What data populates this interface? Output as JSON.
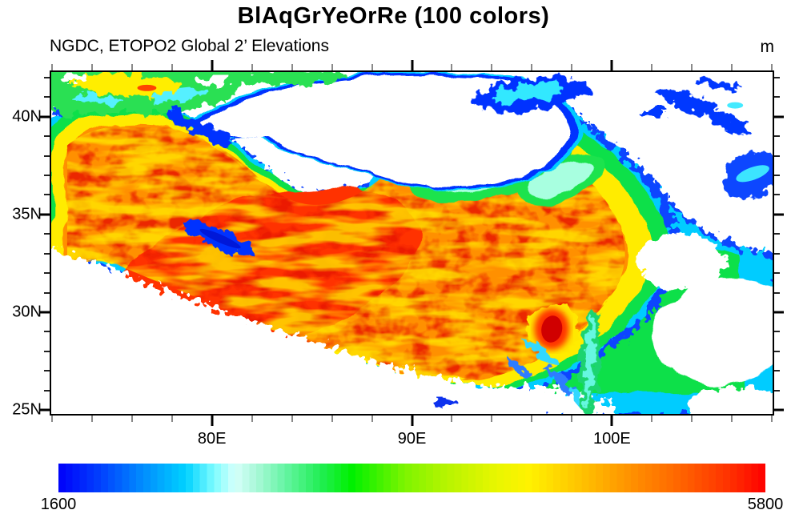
{
  "chart_data": {
    "type": "heatmap",
    "title": "BlAqGrYeOrRe (100 colors)",
    "subtitle": "NGDC, ETOPO2 Global 2’ Elevations",
    "units_label": "m",
    "x_axis": {
      "range": [
        71.97,
        108.03
      ],
      "major_ticks": [
        {
          "value": 80,
          "label": "80E"
        },
        {
          "value": 90,
          "label": "90E"
        },
        {
          "value": 100,
          "label": "100E"
        }
      ],
      "minor_tick_step": 2
    },
    "y_axis": {
      "range": [
        24.8,
        42.28
      ],
      "major_ticks": [
        {
          "value": 25,
          "label": "25N"
        },
        {
          "value": 30,
          "label": "30N"
        },
        {
          "value": 35,
          "label": "35N"
        },
        {
          "value": 40,
          "label": "40N"
        }
      ],
      "minor_tick_step": 1
    },
    "colorbar": {
      "orientation": "horizontal",
      "min_label": "1600",
      "max_label": "5800",
      "n_colors": 100,
      "masked_color": "#ffffff",
      "gradient_stops": [
        {
          "t": 0.0,
          "c": "#0000fa"
        },
        {
          "t": 0.065,
          "c": "#0147fe"
        },
        {
          "t": 0.12,
          "c": "#018dfe"
        },
        {
          "t": 0.18,
          "c": "#00d2ff"
        },
        {
          "t": 0.22,
          "c": "#7dfcff"
        },
        {
          "t": 0.25,
          "c": "#d6fffb"
        },
        {
          "t": 0.28,
          "c": "#aaf8d8"
        },
        {
          "t": 0.32,
          "c": "#66f5a4"
        },
        {
          "t": 0.37,
          "c": "#22ee55"
        },
        {
          "t": 0.415,
          "c": "#00f000"
        },
        {
          "t": 0.49,
          "c": "#7df400"
        },
        {
          "t": 0.55,
          "c": "#b8f400"
        },
        {
          "t": 0.62,
          "c": "#e8f600"
        },
        {
          "t": 0.665,
          "c": "#fff200"
        },
        {
          "t": 0.73,
          "c": "#ffc800"
        },
        {
          "t": 0.81,
          "c": "#ff9100"
        },
        {
          "t": 0.88,
          "c": "#ff6400"
        },
        {
          "t": 0.95,
          "c": "#ff3000"
        },
        {
          "t": 1.0,
          "c": "#fe0000"
        }
      ]
    },
    "value_range_m": [
      1600,
      5800
    ]
  }
}
